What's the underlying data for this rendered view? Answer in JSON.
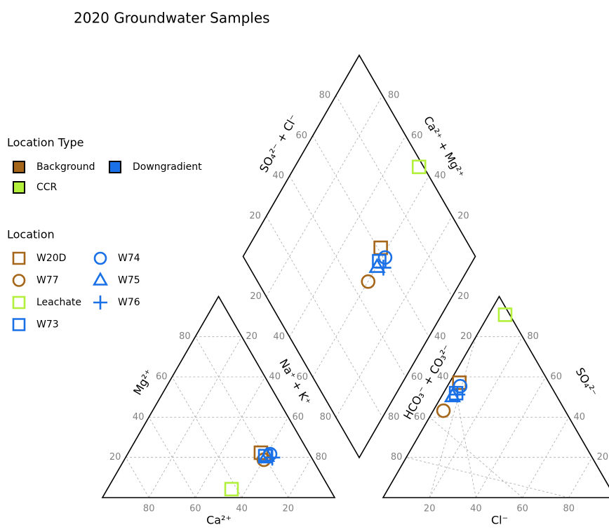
{
  "chart_data": {
    "type": "piper",
    "title": "2020 Groundwater Samples",
    "ticks": [
      20,
      40,
      60,
      80
    ],
    "axes": {
      "ca": "Ca²⁺",
      "mg": "Mg²⁺",
      "na_k": "Na⁺ + K⁺",
      "cl": "Cl⁻",
      "so4": "SO₄²⁻",
      "hco3": "HCO₃⁻ + CO₃²⁻",
      "so4_cl": "SO₄²⁻ + Cl⁻",
      "ca_mg": "Ca²⁺ + Mg²⁺"
    },
    "location_type_title": "Location Type",
    "location_types": [
      {
        "name": "Background",
        "color": "#a5661a"
      },
      {
        "name": "CCR",
        "color": "#b3f03c"
      },
      {
        "name": "Downgradient",
        "color": "#1a70e6"
      }
    ],
    "location_title": "Location",
    "points": [
      {
        "name": "W20D",
        "shape": "square",
        "color": "#a5661a",
        "ca": 20.6,
        "mg": 22.3,
        "cl": 4.3,
        "so4": 57.1
      },
      {
        "name": "W77",
        "shape": "circle",
        "color": "#a5661a",
        "ca": 21.1,
        "mg": 18.8,
        "cl": 4.4,
        "so4": 43.2
      },
      {
        "name": "Leachate",
        "shape": "square",
        "color": "#b3f03c",
        "ca": 42.3,
        "mg": 4.2,
        "cl": 7.1,
        "so4": 90.9
      },
      {
        "name": "W73",
        "shape": "square",
        "color": "#1a70e6",
        "ca": 19.6,
        "mg": 20.6,
        "cl": 5.5,
        "so4": 51.9
      },
      {
        "name": "W74",
        "shape": "circle",
        "color": "#1a70e6",
        "ca": 17.0,
        "mg": 21.6,
        "cl": 5.5,
        "so4": 55.4
      },
      {
        "name": "W75",
        "shape": "triangle",
        "color": "#1a70e6",
        "ca": 19.0,
        "mg": 20.6,
        "cl": 4.8,
        "so4": 50.2
      },
      {
        "name": "W76",
        "shape": "plus",
        "color": "#1a70e6",
        "ca": 16.9,
        "mg": 19.9,
        "cl": 6.4,
        "so4": 51.2
      }
    ]
  }
}
